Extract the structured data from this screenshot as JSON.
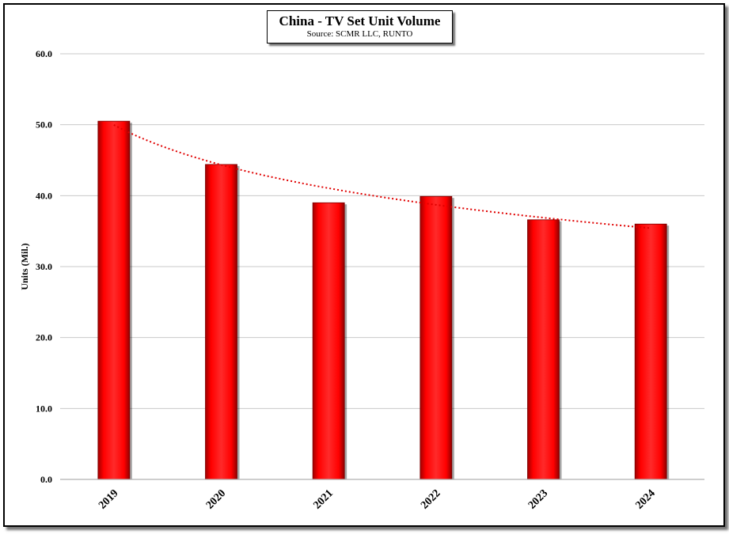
{
  "chart_data": {
    "type": "bar",
    "title": "China - TV Set Unit Volume",
    "subtitle": "Source: SCMR LLC, RUNTO",
    "xlabel": "",
    "ylabel": "Units (Mil.)",
    "categories": [
      "2019",
      "2020",
      "2021",
      "2022",
      "2023",
      "2024"
    ],
    "values": [
      50.5,
      44.4,
      39.0,
      39.9,
      36.6,
      36.0
    ],
    "ylim": [
      0,
      60
    ],
    "yticks": [
      "0.0",
      "10.0",
      "20.0",
      "30.0",
      "40.0",
      "50.0",
      "60.0"
    ],
    "trendline": {
      "style": "dotted",
      "color": "#e00000"
    },
    "grid": true,
    "bar_color": "#ff0000"
  }
}
